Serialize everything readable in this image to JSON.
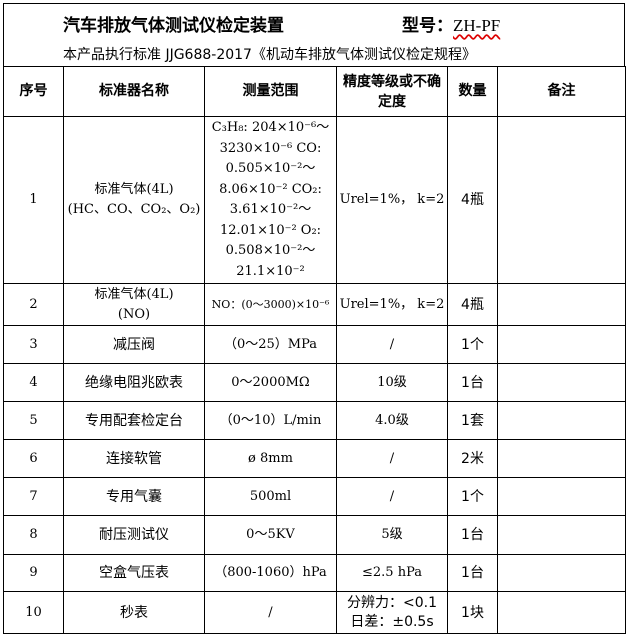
{
  "header": {
    "title": "汽车排放气体测试仪检定装置",
    "model_label": "型号：",
    "model_value": "ZH-PF",
    "standard": "本产品执行标准 JJG688-2017《机动车排放气体测试仪检定规程》"
  },
  "columns": [
    "序号",
    "标准器名称",
    "测量范围",
    "精度等级或不确定度",
    "数量",
    "备注"
  ],
  "rows": [
    {
      "no": "1",
      "name": "标准气体(4L)",
      "name2": "(HC、CO、CO₂、O₂)",
      "range": "C₃H₈: 204×10⁻⁶～3230×10⁻⁶ CO: 0.505×10⁻²～8.06×10⁻² CO₂: 3.61×10⁻²～12.01×10⁻² O₂: 0.508×10⁻²～21.1×10⁻²",
      "acc": "Urel=1%， k=2",
      "qty": "4瓶",
      "note": ""
    },
    {
      "no": "2",
      "name": "标准气体(4L)",
      "name2": "(NO)",
      "range": "NO：(0～3000)×10⁻⁶",
      "acc": "Urel=1%， k=2",
      "qty": "4瓶",
      "note": ""
    },
    {
      "no": "3",
      "name": "减压阀",
      "name2": "",
      "range": "（0～25）MPa",
      "acc": "/",
      "qty": "1个",
      "note": ""
    },
    {
      "no": "4",
      "name": "绝缘电阻兆欧表",
      "name2": "",
      "range": "0～2000MΩ",
      "acc": "10级",
      "qty": "1台",
      "note": ""
    },
    {
      "no": "5",
      "name": "专用配套检定台",
      "name2": "",
      "range": "（0～10）L/min",
      "acc": "4.0级",
      "qty": "1套",
      "note": ""
    },
    {
      "no": "6",
      "name": "连接软管",
      "name2": "",
      "range": "ø 8mm",
      "acc": "/",
      "qty": "2米",
      "note": ""
    },
    {
      "no": "7",
      "name": "专用气囊",
      "name2": "",
      "range": "500ml",
      "acc": "/",
      "qty": "1个",
      "note": ""
    },
    {
      "no": "8",
      "name": "耐压测试仪",
      "name2": "",
      "range": "0～5KV",
      "acc": "5级",
      "qty": "1台",
      "note": ""
    },
    {
      "no": "9",
      "name": "空盒气压表",
      "name2": "",
      "range": "（800-1060）hPa",
      "acc": "≤2.5 hPa",
      "qty": "1台",
      "note": ""
    },
    {
      "no": "10",
      "name": "秒表",
      "name2": "",
      "range": "/",
      "acc": "分辨力：<0.1 日差：±0.5s",
      "qty": "1块",
      "note": ""
    }
  ]
}
